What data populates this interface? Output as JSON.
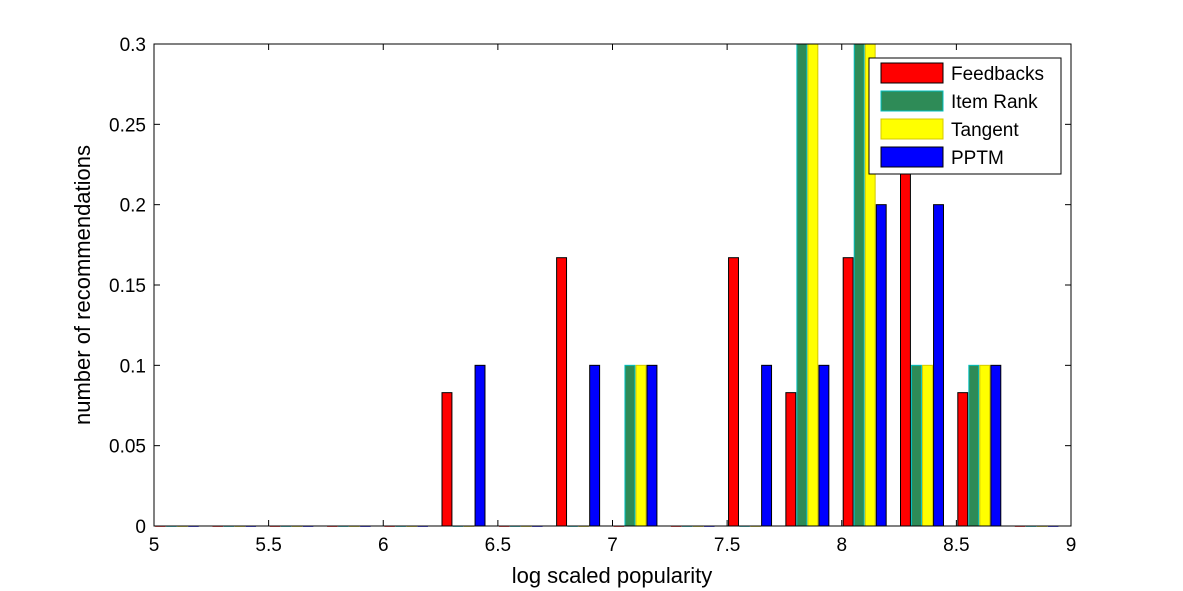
{
  "chart_data": {
    "type": "bar",
    "xlabel": "log scaled popularity",
    "ylabel": "number of recommendations",
    "xlim": [
      5,
      9
    ],
    "ylim": [
      0,
      0.3
    ],
    "xticks": [
      "5",
      "5.5",
      "6",
      "6.5",
      "7",
      "7.5",
      "8",
      "8.5",
      "9"
    ],
    "yticks": [
      "0",
      "0.05",
      "0.1",
      "0.15",
      "0.2",
      "0.25",
      "0.3"
    ],
    "legend_position": "top-right",
    "bin_centers": [
      5.1,
      5.35,
      5.6,
      5.85,
      6.1,
      6.35,
      6.6,
      6.85,
      7.1,
      7.35,
      7.6,
      7.85,
      8.1,
      8.35,
      8.6,
      8.85
    ],
    "series": [
      {
        "name": "Feedbacks",
        "color": "#ff0000",
        "values": [
          0,
          0,
          0,
          0,
          0,
          0.083,
          0,
          0.167,
          0,
          0,
          0.167,
          0.083,
          0.167,
          0.25,
          0.083,
          0
        ]
      },
      {
        "name": "Item Rank",
        "color": "#2e8b57",
        "edge": "#00bfbf",
        "values": [
          0,
          0,
          0,
          0,
          0,
          0,
          0,
          0,
          0.1,
          0,
          0,
          0.3,
          0.3,
          0.1,
          0.1,
          0
        ]
      },
      {
        "name": "Tangent",
        "color": "#ffff00",
        "edge": "#d4c800",
        "values": [
          0,
          0,
          0,
          0,
          0,
          0,
          0,
          0,
          0.1,
          0,
          0,
          0.3,
          0.3,
          0.1,
          0.1,
          0
        ]
      },
      {
        "name": "PPTM",
        "color": "#0000ff",
        "values": [
          0,
          0,
          0,
          0,
          0,
          0.1,
          0,
          0.1,
          0.1,
          0,
          0.1,
          0.1,
          0.2,
          0.2,
          0.1,
          0
        ]
      }
    ]
  }
}
